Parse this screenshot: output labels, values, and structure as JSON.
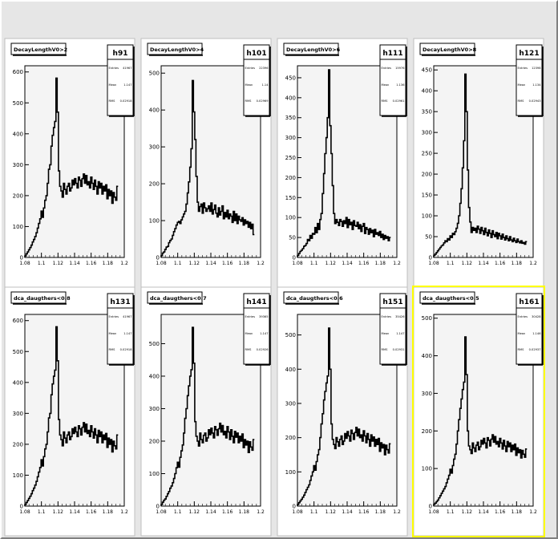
{
  "colors": {
    "window_bg": "#e6e6e6",
    "pad_bg": "#ffffff",
    "frame_bg": "#f4f4f4",
    "histogram": "#000000",
    "selected_pad_border": "#ffff00"
  },
  "charts": [
    {
      "title": "DecayLengthV0>2",
      "name": "h91",
      "stats": {
        "entries_label": "Entries",
        "entries": "41967",
        "mean_label": "Mean",
        "mean": "1.147",
        "rms_label": "RMS",
        "rms": "0.02918"
      }
    },
    {
      "title": "DecayLengthV0>4",
      "name": "h101",
      "stats": {
        "entries_label": "Entries",
        "entries": "22396",
        "mean_label": "Mean",
        "mean": "1.14",
        "rms_label": "RMS",
        "rms": "0.02969"
      }
    },
    {
      "title": "DecayLengthV0>6",
      "name": "h111",
      "stats": {
        "entries_label": "Entries",
        "entries": "15976",
        "mean_label": "Mean",
        "mean": "1.136",
        "rms_label": "RMS",
        "rms": "0.02961"
      }
    },
    {
      "title": "DecayLengthV0>8",
      "name": "h121",
      "stats": {
        "entries_label": "Entries",
        "entries": "12398",
        "mean_label": "Mean",
        "mean": "1.134",
        "rms_label": "RMS",
        "rms": "0.02943"
      }
    },
    {
      "title": "dca_daugthers<0.8",
      "name": "h131",
      "stats": {
        "entries_label": "Entries",
        "entries": "41967",
        "mean_label": "Mean",
        "mean": "1.147",
        "rms_label": "RMS",
        "rms": "0.02918"
      }
    },
    {
      "title": "dca_daugthers<0.7",
      "name": "h141",
      "stats": {
        "entries_label": "Entries",
        "entries": "39365",
        "mean_label": "Mean",
        "mean": "1.147",
        "rms_label": "RMS",
        "rms": "0.02926"
      }
    },
    {
      "title": "dca_daugthers<0.6",
      "name": "h151",
      "stats": {
        "entries_label": "Entries",
        "entries": "35426",
        "mean_label": "Mean",
        "mean": "1.147",
        "rms_label": "RMS",
        "rms": "0.02931"
      }
    },
    {
      "title": "dca_daugthers<0.5",
      "name": "h161",
      "stats": {
        "entries_label": "Entries",
        "entries": "30428",
        "mean_label": "Mean",
        "mean": "1.146",
        "rms_label": "RMS",
        "rms": "0.02937"
      }
    }
  ],
  "chart_data": [
    {
      "type": "bar",
      "subtype": "histogram",
      "title": "DecayLengthV0>2",
      "xlim": [
        1.08,
        1.2
      ],
      "ylim": [
        0,
        620
      ],
      "xticks": [
        "1.08",
        "1.1",
        "1.12",
        "1.14",
        "1.16",
        "1.18",
        "1.2"
      ],
      "yticks": [
        "0",
        "100",
        "200",
        "300",
        "400",
        "500",
        "600"
      ],
      "bin_width": 0.0015,
      "x_start": 1.08,
      "values": [
        5,
        12,
        18,
        25,
        32,
        40,
        50,
        58,
        68,
        80,
        95,
        110,
        125,
        150,
        130,
        160,
        185,
        200,
        240,
        285,
        300,
        360,
        395,
        420,
        440,
        580,
        470,
        280,
        230,
        215,
        195,
        240,
        220,
        205,
        230,
        240,
        215,
        225,
        250,
        235,
        255,
        240,
        225,
        260,
        250,
        230,
        255,
        270,
        240,
        265,
        235,
        245,
        225,
        260,
        240,
        220,
        250,
        230,
        205,
        245,
        225,
        240,
        205,
        230,
        215,
        235,
        190,
        220,
        200,
        215,
        175,
        210,
        195,
        185,
        230
      ]
    },
    {
      "type": "bar",
      "subtype": "histogram",
      "title": "DecayLengthV0>4",
      "xlim": [
        1.08,
        1.2
      ],
      "ylim": [
        0,
        520
      ],
      "xticks": [
        "1.08",
        "1.1",
        "1.12",
        "1.14",
        "1.16",
        "1.18",
        "1.2"
      ],
      "yticks": [
        "0",
        "100",
        "200",
        "300",
        "400",
        "500"
      ],
      "bin_width": 0.0015,
      "x_start": 1.08,
      "values": [
        5,
        12,
        15,
        22,
        28,
        30,
        40,
        46,
        50,
        60,
        70,
        78,
        88,
        95,
        98,
        92,
        102,
        110,
        118,
        125,
        145,
        175,
        205,
        245,
        295,
        480,
        395,
        320,
        220,
        150,
        125,
        138,
        145,
        120,
        148,
        135,
        125,
        132,
        140,
        125,
        148,
        118,
        130,
        142,
        120,
        110,
        135,
        115,
        125,
        140,
        105,
        122,
        110,
        128,
        105,
        118,
        112,
        95,
        125,
        100,
        118,
        92,
        112,
        102,
        98,
        108,
        88,
        102,
        92,
        98,
        82,
        95,
        78,
        90,
        62
      ]
    },
    {
      "type": "bar",
      "subtype": "histogram",
      "title": "DecayLengthV0>6",
      "xlim": [
        1.08,
        1.2
      ],
      "ylim": [
        0,
        480
      ],
      "xticks": [
        "1.08",
        "1.1",
        "1.12",
        "1.14",
        "1.16",
        "1.18",
        "1.2"
      ],
      "yticks": [
        "0",
        "50",
        "100",
        "150",
        "200",
        "250",
        "300",
        "350",
        "400",
        "450"
      ],
      "bin_width": 0.0015,
      "x_start": 1.08,
      "values": [
        5,
        10,
        15,
        18,
        22,
        28,
        30,
        35,
        45,
        42,
        55,
        48,
        60,
        58,
        75,
        62,
        85,
        70,
        95,
        110,
        160,
        210,
        260,
        300,
        350,
        470,
        330,
        260,
        180,
        110,
        85,
        95,
        88,
        80,
        95,
        90,
        78,
        92,
        85,
        100,
        75,
        95,
        82,
        88,
        70,
        92,
        80,
        78,
        88,
        72,
        82,
        65,
        78,
        85,
        60,
        75,
        70,
        58,
        72,
        62,
        68,
        52,
        70,
        58,
        62,
        55,
        65,
        50,
        58,
        45,
        55,
        48,
        52,
        42,
        50
      ]
    },
    {
      "type": "bar",
      "subtype": "histogram",
      "title": "DecayLengthV0>8",
      "xlim": [
        1.08,
        1.2
      ],
      "ylim": [
        0,
        460
      ],
      "xticks": [
        "1.08",
        "1.1",
        "1.12",
        "1.14",
        "1.16",
        "1.18",
        "1.2"
      ],
      "yticks": [
        "0",
        "50",
        "100",
        "150",
        "200",
        "250",
        "300",
        "350",
        "400",
        "450"
      ],
      "bin_width": 0.0015,
      "x_start": 1.08,
      "values": [
        5,
        8,
        12,
        16,
        20,
        24,
        28,
        30,
        35,
        40,
        38,
        45,
        42,
        52,
        48,
        58,
        55,
        62,
        70,
        82,
        100,
        130,
        165,
        215,
        280,
        440,
        350,
        210,
        120,
        85,
        60,
        72,
        65,
        70,
        60,
        75,
        68,
        58,
        72,
        64,
        55,
        70,
        60,
        52,
        66,
        58,
        48,
        64,
        55,
        50,
        60,
        45,
        58,
        52,
        44,
        56,
        48,
        42,
        52,
        45,
        40,
        50,
        42,
        38,
        46,
        40,
        36,
        44,
        38,
        35,
        40,
        34,
        36,
        32,
        38
      ]
    },
    {
      "type": "bar",
      "subtype": "histogram",
      "title": "dca_daugthers<0.8",
      "xlim": [
        1.08,
        1.2
      ],
      "ylim": [
        0,
        620
      ],
      "xticks": [
        "1.08",
        "1.1",
        "1.12",
        "1.14",
        "1.16",
        "1.18",
        "1.2"
      ],
      "yticks": [
        "0",
        "100",
        "200",
        "300",
        "400",
        "500",
        "600"
      ],
      "bin_width": 0.0015,
      "x_start": 1.08,
      "values": [
        5,
        12,
        18,
        25,
        32,
        40,
        50,
        58,
        68,
        80,
        95,
        110,
        125,
        150,
        130,
        160,
        185,
        200,
        240,
        285,
        300,
        360,
        395,
        420,
        440,
        580,
        470,
        280,
        230,
        215,
        195,
        240,
        220,
        205,
        230,
        240,
        215,
        225,
        250,
        235,
        255,
        240,
        225,
        260,
        250,
        230,
        255,
        270,
        240,
        265,
        235,
        245,
        225,
        260,
        240,
        220,
        250,
        230,
        205,
        245,
        225,
        240,
        205,
        230,
        215,
        235,
        190,
        220,
        200,
        215,
        175,
        210,
        195,
        185,
        230
      ]
    },
    {
      "type": "bar",
      "subtype": "histogram",
      "title": "dca_daugthers<0.7",
      "xlim": [
        1.08,
        1.2
      ],
      "ylim": [
        0,
        590
      ],
      "xticks": [
        "1.08",
        "1.1",
        "1.12",
        "1.14",
        "1.16",
        "1.18",
        "1.2"
      ],
      "yticks": [
        "0",
        "100",
        "200",
        "300",
        "400",
        "500"
      ],
      "bin_width": 0.0015,
      "x_start": 1.08,
      "values": [
        5,
        12,
        18,
        22,
        30,
        38,
        45,
        55,
        62,
        72,
        85,
        100,
        118,
        135,
        120,
        150,
        170,
        188,
        225,
        270,
        300,
        340,
        370,
        400,
        420,
        550,
        440,
        260,
        215,
        200,
        185,
        225,
        205,
        195,
        218,
        225,
        200,
        210,
        235,
        220,
        240,
        225,
        210,
        245,
        235,
        218,
        238,
        255,
        228,
        248,
        220,
        230,
        210,
        245,
        228,
        205,
        235,
        215,
        195,
        230,
        212,
        225,
        195,
        215,
        200,
        222,
        180,
        205,
        188,
        200,
        165,
        198,
        182,
        172,
        205
      ]
    },
    {
      "type": "bar",
      "subtype": "histogram",
      "title": "dca_daugthers<0.6",
      "xlim": [
        1.08,
        1.2
      ],
      "ylim": [
        0,
        560
      ],
      "xticks": [
        "1.08",
        "1.1",
        "1.12",
        "1.14",
        "1.16",
        "1.18",
        "1.2"
      ],
      "yticks": [
        "0",
        "100",
        "200",
        "300",
        "400",
        "500"
      ],
      "bin_width": 0.0015,
      "x_start": 1.08,
      "values": [
        5,
        10,
        15,
        20,
        26,
        32,
        40,
        48,
        55,
        62,
        75,
        88,
        100,
        118,
        105,
        130,
        150,
        165,
        200,
        240,
        270,
        310,
        335,
        360,
        380,
        520,
        400,
        240,
        195,
        180,
        168,
        200,
        188,
        175,
        195,
        205,
        180,
        190,
        212,
        198,
        218,
        205,
        190,
        222,
        212,
        195,
        215,
        230,
        205,
        225,
        200,
        208,
        190,
        220,
        205,
        185,
        212,
        195,
        175,
        208,
        190,
        202,
        175,
        195,
        180,
        198,
        160,
        185,
        170,
        180,
        150,
        178,
        165,
        155,
        182
      ]
    },
    {
      "type": "bar",
      "subtype": "histogram",
      "title": "dca_daugthers<0.5",
      "xlim": [
        1.08,
        1.2
      ],
      "ylim": [
        0,
        510
      ],
      "xticks": [
        "1.08",
        "1.1",
        "1.12",
        "1.14",
        "1.16",
        "1.18",
        "1.2"
      ],
      "yticks": [
        "0",
        "100",
        "200",
        "300",
        "400",
        "500"
      ],
      "bin_width": 0.0015,
      "x_start": 1.08,
      "values": [
        5,
        8,
        12,
        16,
        22,
        28,
        34,
        40,
        46,
        52,
        62,
        72,
        82,
        98,
        88,
        108,
        125,
        138,
        165,
        200,
        230,
        260,
        285,
        310,
        330,
        450,
        350,
        200,
        160,
        150,
        140,
        168,
        155,
        145,
        162,
        170,
        150,
        158,
        175,
        165,
        180,
        168,
        155,
        182,
        175,
        160,
        178,
        190,
        170,
        185,
        165,
        172,
        158,
        180,
        168,
        152,
        175,
        160,
        145,
        172,
        158,
        168,
        145,
        162,
        150,
        165,
        135,
        155,
        142,
        150,
        128,
        148,
        138,
        130,
        152
      ]
    }
  ]
}
